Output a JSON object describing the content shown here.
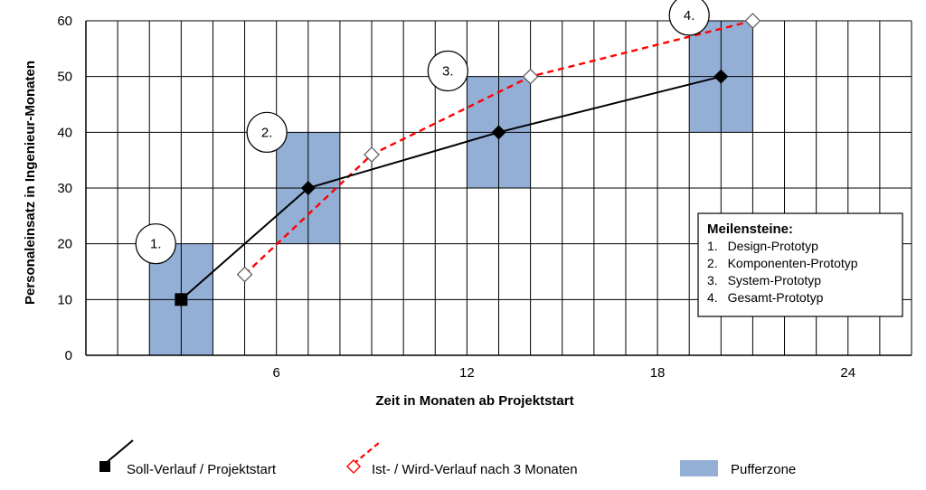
{
  "chart_data": {
    "type": "line",
    "xlabel": "Zeit in Monaten ab Projektstart",
    "ylabel": "Personaleinsatz in Ingenieur-Monaten",
    "xlim": [
      0,
      26
    ],
    "ylim": [
      0,
      60
    ],
    "x_ticks": [
      6,
      12,
      18,
      24
    ],
    "y_ticks": [
      0,
      10,
      20,
      30,
      40,
      50,
      60
    ],
    "grid": true,
    "series": [
      {
        "name": "Soll-Verlauf / Projektstart",
        "style": "solid",
        "color": "#000000",
        "marker": "filled-square-diamond",
        "points": [
          [
            3,
            10
          ],
          [
            7,
            30
          ],
          [
            13,
            40
          ],
          [
            20,
            50
          ]
        ]
      },
      {
        "name": "Ist- / Wird-Verlauf nach 3 Monaten",
        "style": "dashed",
        "color": "#ff0000",
        "marker": "open-diamond",
        "points": [
          [
            5,
            14.5
          ],
          [
            9,
            36
          ],
          [
            14,
            50
          ],
          [
            21,
            60
          ]
        ]
      }
    ],
    "buffer_zones": [
      {
        "x": [
          2,
          4
        ],
        "y": [
          0,
          20
        ]
      },
      {
        "x": [
          6,
          8
        ],
        "y": [
          20,
          40
        ]
      },
      {
        "x": [
          12,
          14
        ],
        "y": [
          30,
          50
        ]
      },
      {
        "x": [
          19,
          21
        ],
        "y": [
          40,
          60
        ]
      }
    ],
    "milestones": [
      {
        "label": "1.",
        "x": 2.2,
        "y": 20
      },
      {
        "label": "2.",
        "x": 5.7,
        "y": 40
      },
      {
        "label": "3.",
        "x": 11.4,
        "y": 51
      },
      {
        "label": "4.",
        "x": 19.0,
        "y": 61
      }
    ],
    "legend_box": {
      "title": "Meilensteine:",
      "items": [
        "1.  Design-Prototyp",
        "2.  Komponenten-Prototyp",
        "3.  System-Prototyp",
        "4.  Gesamt-Prototyp"
      ]
    },
    "bottom_legend": {
      "soll": "Soll-Verlauf / Projektstart",
      "ist": "Ist- / Wird-Verlauf nach 3 Monaten",
      "buffer": "Pufferzone"
    },
    "colors": {
      "buffer": "#93afd6",
      "soll": "#000000",
      "ist": "#ff0000"
    }
  }
}
